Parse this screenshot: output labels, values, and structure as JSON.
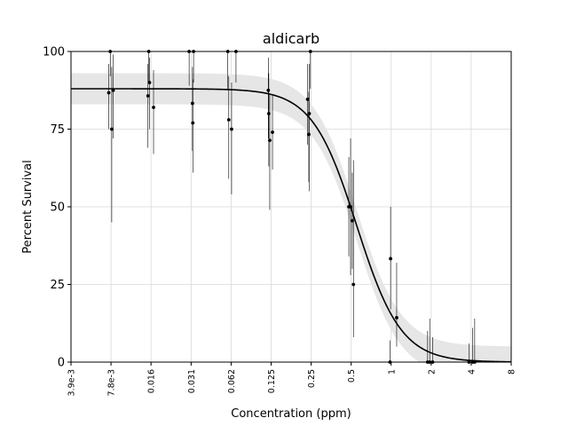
{
  "chart_data": {
    "type": "scatter",
    "title": "aldicarb",
    "xlabel": "Concentration (ppm)",
    "ylabel": "Percent Survival",
    "x_scale": "log2",
    "xlim": [
      0.0039,
      8
    ],
    "ylim": [
      0,
      100
    ],
    "grid": true,
    "x_ticks": [
      {
        "value": 0.0039,
        "label": "3.9e-3"
      },
      {
        "value": 0.0078,
        "label": "7.8e-3"
      },
      {
        "value": 0.0156,
        "label": "0.016"
      },
      {
        "value": 0.03125,
        "label": "0.031"
      },
      {
        "value": 0.0625,
        "label": "0.062"
      },
      {
        "value": 0.125,
        "label": "0.125"
      },
      {
        "value": 0.25,
        "label": "0.25"
      },
      {
        "value": 0.5,
        "label": "0.5"
      },
      {
        "value": 1,
        "label": "1"
      },
      {
        "value": 2,
        "label": "2"
      },
      {
        "value": 4,
        "label": "4"
      },
      {
        "value": 8,
        "label": "8"
      }
    ],
    "y_ticks": [
      {
        "value": 0,
        "label": "0"
      },
      {
        "value": 25,
        "label": "25"
      },
      {
        "value": 50,
        "label": "50"
      },
      {
        "value": 75,
        "label": "75"
      },
      {
        "value": 100,
        "label": "100"
      }
    ],
    "fit_curve": {
      "top": 88,
      "bottom": 0,
      "ec50": 0.55,
      "hill": 2.6
    },
    "confidence_band_halfwidth": 5,
    "colors": {
      "points": "#000000",
      "curve": "#000000",
      "band": "#e6e6e6",
      "grid": "#d9d9d9"
    },
    "points": [
      {
        "x": 0.0075,
        "y": 86.7,
        "lo": 75,
        "hi": 96
      },
      {
        "x": 0.0077,
        "y": 100,
        "lo": 92,
        "hi": 100
      },
      {
        "x": 0.0079,
        "y": 75,
        "lo": 45,
        "hi": 95
      },
      {
        "x": 0.0081,
        "y": 87.5,
        "lo": 72,
        "hi": 99
      },
      {
        "x": 0.0148,
        "y": 85.7,
        "lo": 69,
        "hi": 96
      },
      {
        "x": 0.015,
        "y": 100,
        "lo": 90,
        "hi": 100
      },
      {
        "x": 0.0152,
        "y": 90,
        "lo": 75,
        "hi": 98
      },
      {
        "x": 0.0163,
        "y": 82,
        "lo": 67,
        "hi": 94
      },
      {
        "x": 0.0302,
        "y": 100,
        "lo": 89,
        "hi": 100
      },
      {
        "x": 0.032,
        "y": 83.3,
        "lo": 68,
        "hi": 95
      },
      {
        "x": 0.0322,
        "y": 77,
        "lo": 61,
        "hi": 91
      },
      {
        "x": 0.0326,
        "y": 100,
        "lo": 90,
        "hi": 100
      },
      {
        "x": 0.059,
        "y": 100,
        "lo": 88,
        "hi": 100
      },
      {
        "x": 0.06,
        "y": 78,
        "lo": 59,
        "hi": 92
      },
      {
        "x": 0.063,
        "y": 75,
        "lo": 54,
        "hi": 90
      },
      {
        "x": 0.068,
        "y": 100,
        "lo": 90,
        "hi": 100
      },
      {
        "x": 0.119,
        "y": 87.5,
        "lo": 72,
        "hi": 98
      },
      {
        "x": 0.12,
        "y": 80,
        "lo": 63,
        "hi": 93
      },
      {
        "x": 0.122,
        "y": 71.4,
        "lo": 49,
        "hi": 86
      },
      {
        "x": 0.128,
        "y": 74,
        "lo": 62,
        "hi": 86
      },
      {
        "x": 0.235,
        "y": 84.6,
        "lo": 70,
        "hi": 96
      },
      {
        "x": 0.24,
        "y": 73.3,
        "lo": 58,
        "hi": 87
      },
      {
        "x": 0.242,
        "y": 80,
        "lo": 55,
        "hi": 96
      },
      {
        "x": 0.247,
        "y": 100,
        "lo": 88,
        "hi": 100
      },
      {
        "x": 0.48,
        "y": 50,
        "lo": 34,
        "hi": 66
      },
      {
        "x": 0.495,
        "y": 50,
        "lo": 28,
        "hi": 72
      },
      {
        "x": 0.51,
        "y": 45.5,
        "lo": 30,
        "hi": 61
      },
      {
        "x": 0.52,
        "y": 25,
        "lo": 8,
        "hi": 65
      },
      {
        "x": 0.98,
        "y": 0,
        "lo": 0,
        "hi": 7
      },
      {
        "x": 0.99,
        "y": 33.3,
        "lo": 17,
        "hi": 50
      },
      {
        "x": 1.1,
        "y": 14.3,
        "lo": 5,
        "hi": 32
      },
      {
        "x": 1.88,
        "y": 0,
        "lo": 0,
        "hi": 10
      },
      {
        "x": 1.95,
        "y": 0,
        "lo": 0,
        "hi": 14
      },
      {
        "x": 2.05,
        "y": 0,
        "lo": 0,
        "hi": 8
      },
      {
        "x": 3.85,
        "y": 0,
        "lo": 0,
        "hi": 6
      },
      {
        "x": 4.1,
        "y": 0,
        "lo": 0,
        "hi": 11
      },
      {
        "x": 4.25,
        "y": 0,
        "lo": 0,
        "hi": 14
      }
    ]
  }
}
